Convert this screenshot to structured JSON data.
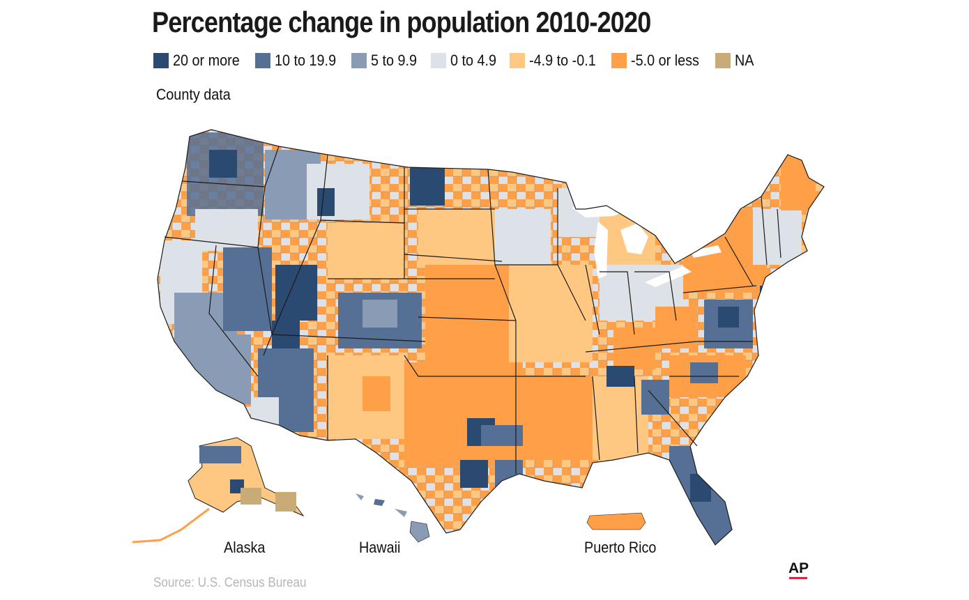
{
  "title": "Percentage change in population 2010-2020",
  "subtitle": "County data",
  "legend": [
    {
      "label": "20 or more",
      "color": "#2b4a72"
    },
    {
      "label": "10 to 19.9",
      "color": "#566f94"
    },
    {
      "label": "5 to 9.9",
      "color": "#8a9bb6"
    },
    {
      "label": "0 to 4.9",
      "color": "#dde1e8"
    },
    {
      "label": "-4.9 to -0.1",
      "color": "#ffc882"
    },
    {
      "label": "-5.0 or less",
      "color": "#ffa048"
    },
    {
      "label": "NA",
      "color": "#c8ab76"
    }
  ],
  "regions": {
    "alaska": "Alaska",
    "hawaii": "Hawaii",
    "puerto_rico": "Puerto Rico"
  },
  "source": "Source: U.S. Census Bureau",
  "logo": "AP",
  "colors": {
    "border": "#1a1a1a",
    "background": "#ffffff"
  }
}
